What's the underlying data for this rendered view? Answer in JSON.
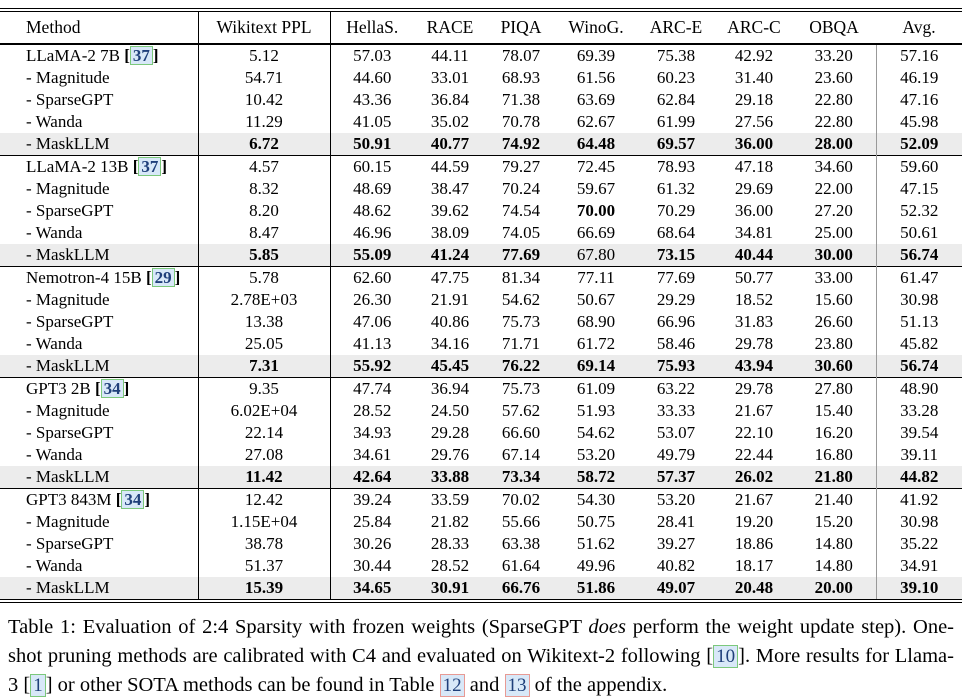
{
  "accent_colors": {
    "highlight_row_bg": "#ececec",
    "cite_box_fill": "#d8e8f8",
    "cite_box_border_green": "#7cc87c",
    "ref_box_border_red": "#e89a94",
    "cite_text": "#1f3f7a",
    "avg_rule": "#999999"
  },
  "table": {
    "columns": [
      "Method",
      "Wikitext PPL",
      "HellaS.",
      "RACE",
      "PIQA",
      "WinoG.",
      "ARC-E",
      "ARC-C",
      "OBQA",
      "Avg."
    ],
    "groups": [
      {
        "model": "LLaMA-2 7B",
        "cite": "37",
        "base_values": [
          "5.12",
          "57.03",
          "44.11",
          "78.07",
          "69.39",
          "75.38",
          "42.92",
          "33.20",
          "57.16"
        ],
        "rows": [
          {
            "label": "- Magnitude",
            "values": [
              "54.71",
              "44.60",
              "33.01",
              "68.93",
              "61.56",
              "60.23",
              "31.40",
              "23.60",
              "46.19"
            ],
            "bold": [],
            "highlight": false
          },
          {
            "label": "- SparseGPT",
            "values": [
              "10.42",
              "43.36",
              "36.84",
              "71.38",
              "63.69",
              "62.84",
              "29.18",
              "22.80",
              "47.16"
            ],
            "bold": [],
            "highlight": false
          },
          {
            "label": "- Wanda",
            "values": [
              "11.29",
              "41.05",
              "35.02",
              "70.78",
              "62.67",
              "61.99",
              "27.56",
              "22.80",
              "45.98"
            ],
            "bold": [],
            "highlight": false
          },
          {
            "label": "- MaskLLM",
            "values": [
              "6.72",
              "50.91",
              "40.77",
              "74.92",
              "64.48",
              "69.57",
              "36.00",
              "28.00",
              "52.09"
            ],
            "bold": [
              0,
              1,
              2,
              3,
              4,
              5,
              6,
              7,
              8
            ],
            "highlight": true
          }
        ]
      },
      {
        "model": "LLaMA-2 13B",
        "cite": "37",
        "base_values": [
          "4.57",
          "60.15",
          "44.59",
          "79.27",
          "72.45",
          "78.93",
          "47.18",
          "34.60",
          "59.60"
        ],
        "rows": [
          {
            "label": "- Magnitude",
            "values": [
              "8.32",
              "48.69",
              "38.47",
              "70.24",
              "59.67",
              "61.32",
              "29.69",
              "22.00",
              "47.15"
            ],
            "bold": [],
            "highlight": false
          },
          {
            "label": "- SparseGPT",
            "values": [
              "8.20",
              "48.62",
              "39.62",
              "74.54",
              "70.00",
              "70.29",
              "36.00",
              "27.20",
              "52.32"
            ],
            "bold": [
              4
            ],
            "highlight": false
          },
          {
            "label": "- Wanda",
            "values": [
              "8.47",
              "46.96",
              "38.09",
              "74.05",
              "66.69",
              "68.64",
              "34.81",
              "25.00",
              "50.61"
            ],
            "bold": [],
            "highlight": false
          },
          {
            "label": "- MaskLLM",
            "values": [
              "5.85",
              "55.09",
              "41.24",
              "77.69",
              "67.80",
              "73.15",
              "40.44",
              "30.00",
              "56.74"
            ],
            "bold": [
              0,
              1,
              2,
              3,
              5,
              6,
              7,
              8
            ],
            "highlight": true
          }
        ]
      },
      {
        "model": "Nemotron-4 15B",
        "cite": "29",
        "base_values": [
          "5.78",
          "62.60",
          "47.75",
          "81.34",
          "77.11",
          "77.69",
          "50.77",
          "33.00",
          "61.47"
        ],
        "rows": [
          {
            "label": "- Magnitude",
            "values": [
              "2.78E+03",
              "26.30",
              "21.91",
              "54.62",
              "50.67",
              "29.29",
              "18.52",
              "15.60",
              "30.98"
            ],
            "bold": [],
            "highlight": false
          },
          {
            "label": "- SparseGPT",
            "values": [
              "13.38",
              "47.06",
              "40.86",
              "75.73",
              "68.90",
              "66.96",
              "31.83",
              "26.60",
              "51.13"
            ],
            "bold": [],
            "highlight": false
          },
          {
            "label": "- Wanda",
            "values": [
              "25.05",
              "41.13",
              "34.16",
              "71.71",
              "61.72",
              "58.46",
              "29.78",
              "23.80",
              "45.82"
            ],
            "bold": [],
            "highlight": false
          },
          {
            "label": "- MaskLLM",
            "values": [
              "7.31",
              "55.92",
              "45.45",
              "76.22",
              "69.14",
              "75.93",
              "43.94",
              "30.60",
              "56.74"
            ],
            "bold": [
              0,
              1,
              2,
              3,
              4,
              5,
              6,
              7,
              8
            ],
            "highlight": true
          }
        ]
      },
      {
        "model": "GPT3 2B",
        "cite": "34",
        "base_values": [
          "9.35",
          "47.74",
          "36.94",
          "75.73",
          "61.09",
          "63.22",
          "29.78",
          "27.80",
          "48.90"
        ],
        "rows": [
          {
            "label": "- Magnitude",
            "values": [
              "6.02E+04",
              "28.52",
              "24.50",
              "57.62",
              "51.93",
              "33.33",
              "21.67",
              "15.40",
              "33.28"
            ],
            "bold": [],
            "highlight": false
          },
          {
            "label": "- SparseGPT",
            "values": [
              "22.14",
              "34.93",
              "29.28",
              "66.60",
              "54.62",
              "53.07",
              "22.10",
              "16.20",
              "39.54"
            ],
            "bold": [],
            "highlight": false
          },
          {
            "label": "- Wanda",
            "values": [
              "27.08",
              "34.61",
              "29.76",
              "67.14",
              "53.20",
              "49.79",
              "22.44",
              "16.80",
              "39.11"
            ],
            "bold": [],
            "highlight": false
          },
          {
            "label": "- MaskLLM",
            "values": [
              "11.42",
              "42.64",
              "33.88",
              "73.34",
              "58.72",
              "57.37",
              "26.02",
              "21.80",
              "44.82"
            ],
            "bold": [
              0,
              1,
              2,
              3,
              4,
              5,
              6,
              7,
              8
            ],
            "highlight": true
          }
        ]
      },
      {
        "model": "GPT3 843M",
        "cite": "34",
        "base_values": [
          "12.42",
          "39.24",
          "33.59",
          "70.02",
          "54.30",
          "53.20",
          "21.67",
          "21.40",
          "41.92"
        ],
        "rows": [
          {
            "label": "- Magnitude",
            "values": [
              "1.15E+04",
              "25.84",
              "21.82",
              "55.66",
              "50.75",
              "28.41",
              "19.20",
              "15.20",
              "30.98"
            ],
            "bold": [],
            "highlight": false
          },
          {
            "label": "- SparseGPT",
            "values": [
              "38.78",
              "30.26",
              "28.33",
              "63.38",
              "51.62",
              "39.27",
              "18.86",
              "14.80",
              "35.22"
            ],
            "bold": [],
            "highlight": false
          },
          {
            "label": "- Wanda",
            "values": [
              "51.37",
              "30.44",
              "28.52",
              "61.64",
              "49.96",
              "40.82",
              "18.17",
              "14.80",
              "34.91"
            ],
            "bold": [],
            "highlight": false
          },
          {
            "label": "- MaskLLM",
            "values": [
              "15.39",
              "34.65",
              "30.91",
              "66.76",
              "51.86",
              "49.07",
              "20.48",
              "20.00",
              "39.10"
            ],
            "bold": [
              0,
              1,
              2,
              3,
              4,
              5,
              6,
              7,
              8
            ],
            "highlight": true
          }
        ]
      }
    ]
  },
  "caption": {
    "segments": [
      {
        "type": "text",
        "text": "Table 1: Evaluation of 2:4 Sparsity with frozen weights (SparseGPT "
      },
      {
        "type": "italic",
        "text": "does"
      },
      {
        "type": "text",
        "text": " perform the weight update step). One-shot pruning methods are calibrated with C4 and evaluated on Wikitext-2 following "
      },
      {
        "type": "cite",
        "text": "10"
      },
      {
        "type": "text",
        "text": ". More results for Llama-3 "
      },
      {
        "type": "cite",
        "text": "1"
      },
      {
        "type": "text",
        "text": " or other SOTA methods can be found in Table "
      },
      {
        "type": "ref",
        "text": "12"
      },
      {
        "type": "text",
        "text": " and "
      },
      {
        "type": "ref",
        "text": "13"
      },
      {
        "type": "text",
        "text": " of the appendix."
      }
    ]
  }
}
